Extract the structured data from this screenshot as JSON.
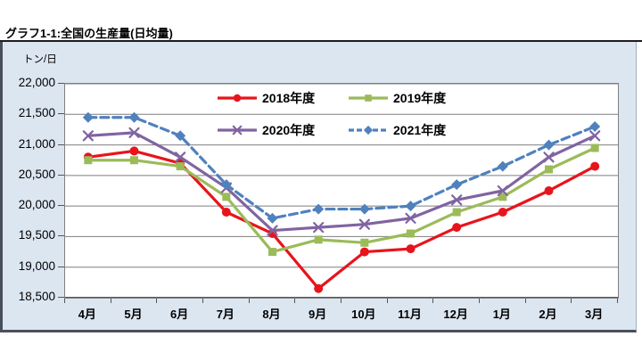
{
  "page_title": "グラフ1-1:全国の生産量(日均量)",
  "unit_label": "トン/日",
  "colors": {
    "chart_background": "#dce6f1",
    "plot_background": "#ffffff",
    "gridline": "#7f7f7f",
    "axis_line": "#404040",
    "frame_border": "#49505c",
    "text": "#000000"
  },
  "chart_data": {
    "type": "line",
    "title": "グラフ1-1:全国の生産量(日均量)",
    "ylabel": "トン/日",
    "xlabel": "",
    "grid": true,
    "legend_position": "top-center",
    "ylim": [
      18500,
      22000
    ],
    "ytick_step": 500,
    "ytick_labels": [
      "22,000",
      "21,500",
      "21,000",
      "20,500",
      "20,000",
      "19,500",
      "19,000",
      "18,500"
    ],
    "categories": [
      "4月",
      "5月",
      "6月",
      "7月",
      "8月",
      "9月",
      "10月",
      "11月",
      "12月",
      "1月",
      "2月",
      "3月"
    ],
    "series": [
      {
        "name": "2018年度",
        "color": "#e8141c",
        "marker": "circle",
        "dash": "solid",
        "values": [
          20800,
          20900,
          20700,
          19900,
          19550,
          18650,
          19250,
          19300,
          19650,
          19900,
          20250,
          20650
        ]
      },
      {
        "name": "2019年度",
        "color": "#9bbb59",
        "marker": "square",
        "dash": "solid",
        "values": [
          20750,
          20750,
          20650,
          20150,
          19250,
          19450,
          19400,
          19550,
          19900,
          20150,
          20600,
          20950
        ]
      },
      {
        "name": "2020年度",
        "color": "#8064a2",
        "marker": "x",
        "dash": "solid",
        "values": [
          21150,
          21200,
          20800,
          20300,
          19600,
          19650,
          19700,
          19800,
          20100,
          20250,
          20800,
          21150
        ]
      },
      {
        "name": "2021年度",
        "color": "#4f81bd",
        "marker": "diamond",
        "dash": "dashed",
        "values": [
          21450,
          21450,
          21150,
          20350,
          19800,
          19950,
          19950,
          20000,
          20350,
          20650,
          21000,
          21300
        ]
      }
    ]
  }
}
